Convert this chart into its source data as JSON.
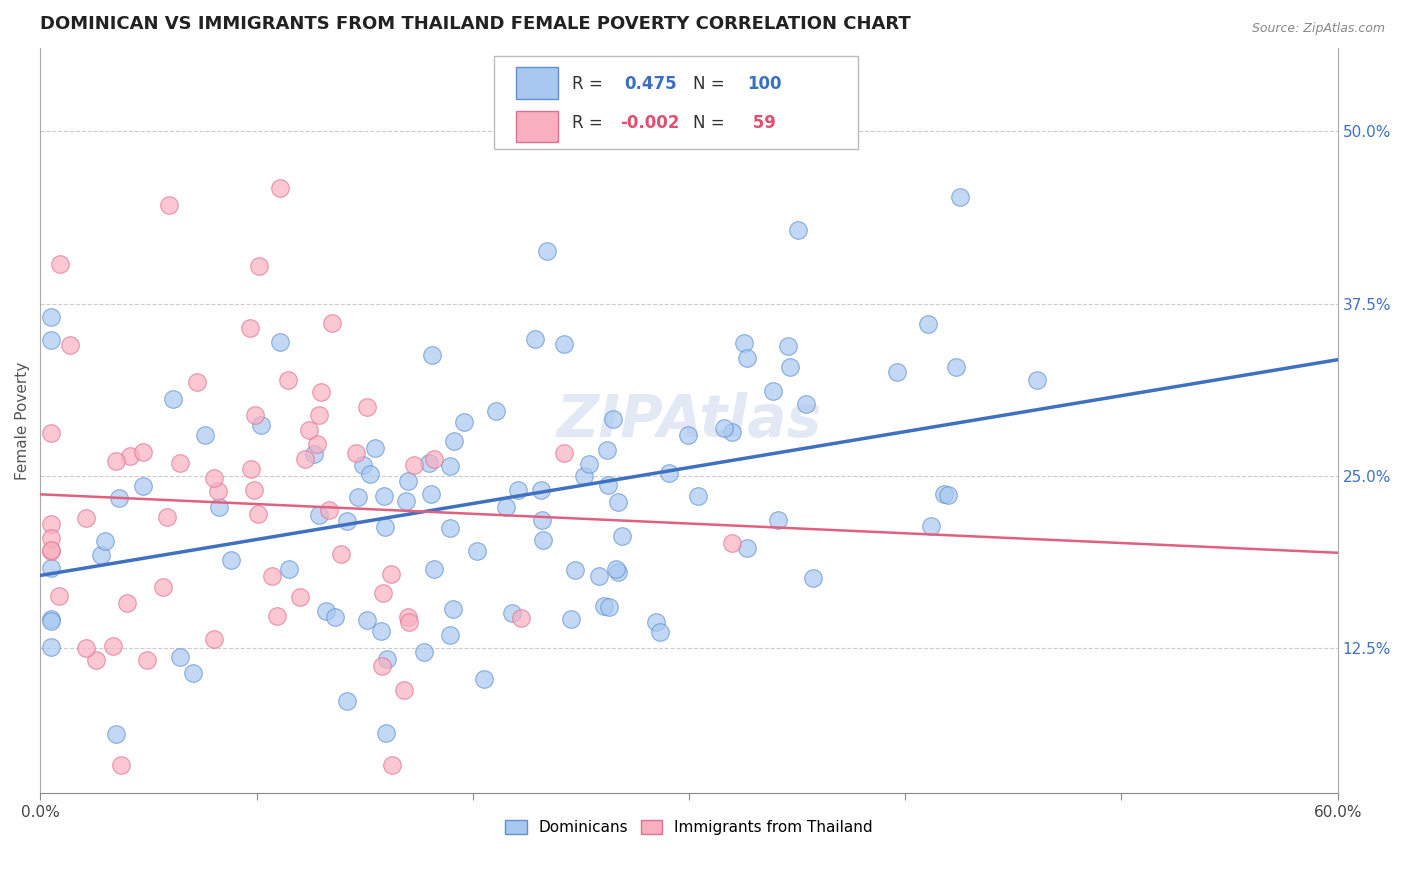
{
  "title": "DOMINICAN VS IMMIGRANTS FROM THAILAND FEMALE POVERTY CORRELATION CHART",
  "source": "Source: ZipAtlas.com",
  "ylabel": "Female Poverty",
  "y_ticks": [
    0.125,
    0.25,
    0.375,
    0.5
  ],
  "y_tick_labels": [
    "12.5%",
    "25.0%",
    "37.5%",
    "50.0%"
  ],
  "xlim": [
    0.0,
    0.6
  ],
  "ylim": [
    0.02,
    0.56
  ],
  "dominicans_color": "#a8c8f0",
  "thailand_color": "#f8b0c0",
  "dominicans_edge": "#6090d0",
  "thailand_edge": "#e07090",
  "regression_blue": "#4070c0",
  "regression_pink": "#e06080",
  "watermark": "ZIPAtlas",
  "background_color": "#ffffff",
  "grid_color": "#cccccc",
  "title_fontsize": 13,
  "axis_label_fontsize": 11,
  "tick_fontsize": 11,
  "watermark_color": "#ccd8ec",
  "watermark_fontsize": 42,
  "watermark_alpha": 0.55,
  "dom_r": 0.475,
  "dom_n": 100,
  "thai_r": -0.002,
  "thai_n": 59
}
